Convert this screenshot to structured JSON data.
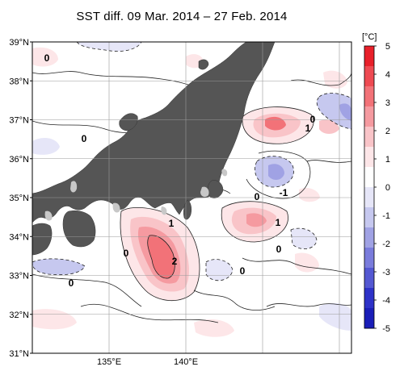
{
  "title": "SST diff. 09 Mar. 2014 – 27 Feb. 2014",
  "lat_labels": [
    "39°N",
    "38°N",
    "37°N",
    "36°N",
    "35°N",
    "34°N",
    "33°N",
    "32°N",
    "31°N"
  ],
  "lon_labels": [
    "135°E",
    "140°E"
  ],
  "colorbar": {
    "unit": "[°C]",
    "ticks": [
      "5",
      "4",
      "3",
      "2",
      "1",
      "0",
      "-1",
      "-2",
      "-3",
      "-4",
      "-5"
    ],
    "colors": [
      "#e8202a",
      "#ee4a52",
      "#f27278",
      "#f59aa0",
      "#f9c4c8",
      "#fde6e8",
      "#ffffff",
      "#e6e6f8",
      "#c6c8ef",
      "#a0a2e4",
      "#7a7cdc",
      "#5458d2",
      "#2e32c8",
      "#1a1eb8"
    ]
  },
  "contour_labels": [
    "0",
    "0",
    "0",
    "1",
    "0",
    "-1",
    "1",
    "1",
    "0",
    "2",
    "0",
    "0",
    "0"
  ],
  "colors": {
    "land": "#555555",
    "lake": "#c8c8c8",
    "grid": "#999999"
  }
}
